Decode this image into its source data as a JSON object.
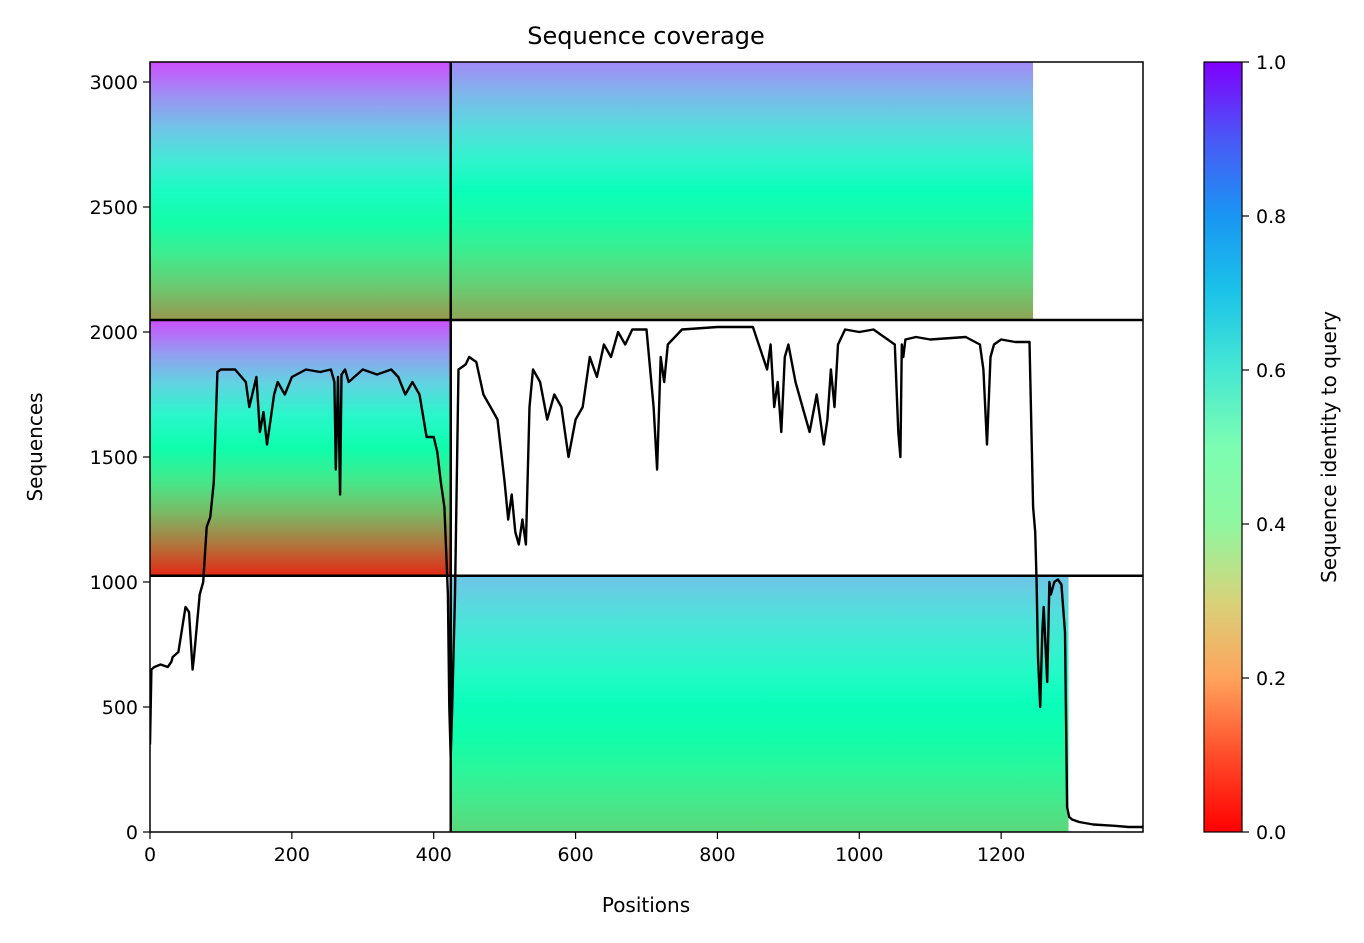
{
  "chart_data": {
    "type": "heatmap",
    "title": "Sequence coverage",
    "xlabel": "Positions",
    "ylabel": "Sequences",
    "xlim": [
      0,
      1400
    ],
    "ylim": [
      0,
      3080
    ],
    "xticks": [
      0,
      200,
      400,
      600,
      800,
      1000,
      1200
    ],
    "yticks": [
      0,
      500,
      1000,
      1500,
      2000,
      2500,
      3000
    ],
    "colorbar": {
      "label": "Sequence identity to query",
      "range": [
        0,
        1
      ],
      "ticks": [
        "0.0",
        "0.2",
        "0.4",
        "0.6",
        "0.8",
        "1.0"
      ],
      "colormap": "rainbow_r"
    },
    "divider_lines": {
      "vertical_x": [
        424
      ],
      "horizontal_y": [
        1025,
        2048
      ]
    },
    "blocks": [
      {
        "name": "top-left",
        "x0": 0,
        "x1": 424,
        "y0": 2048,
        "y1": 3080,
        "identity_low": 0.2,
        "identity_high": 0.9
      },
      {
        "name": "top-right",
        "x0": 424,
        "x1": 1245,
        "y0": 2048,
        "y1": 3080,
        "identity_low": 0.22,
        "identity_high": 0.82
      },
      {
        "name": "middle-left",
        "x0": 0,
        "x1": 424,
        "y0": 1025,
        "y1": 2048,
        "identity_low": 0.05,
        "identity_high": 0.9
      },
      {
        "name": "bottom-right",
        "x0": 424,
        "x1": 1295,
        "y0": 0,
        "y1": 1025,
        "identity_low": 0.32,
        "identity_high": 0.72
      }
    ],
    "coverage_line": {
      "x": [
        0,
        2,
        6,
        15,
        25,
        30,
        32,
        40,
        50,
        55,
        60,
        62,
        70,
        75,
        80,
        85,
        90,
        95,
        100,
        120,
        135,
        140,
        150,
        155,
        160,
        165,
        170,
        175,
        180,
        190,
        200,
        220,
        240,
        255,
        260,
        262,
        265,
        268,
        270,
        275,
        280,
        300,
        320,
        340,
        350,
        360,
        370,
        380,
        390,
        400,
        405,
        410,
        415,
        420,
        422,
        424,
        426,
        430,
        435,
        440,
        445,
        450,
        460,
        470,
        480,
        490,
        500,
        505,
        510,
        515,
        520,
        525,
        530,
        535,
        540,
        550,
        560,
        570,
        580,
        590,
        600,
        610,
        620,
        630,
        640,
        650,
        660,
        670,
        680,
        700,
        710,
        715,
        720,
        725,
        730,
        750,
        800,
        850,
        870,
        875,
        880,
        885,
        890,
        895,
        900,
        910,
        920,
        930,
        940,
        950,
        955,
        960,
        965,
        970,
        980,
        1000,
        1020,
        1050,
        1055,
        1058,
        1060,
        1062,
        1065,
        1080,
        1100,
        1150,
        1170,
        1175,
        1180,
        1185,
        1190,
        1200,
        1220,
        1240,
        1245,
        1248,
        1250,
        1252,
        1255,
        1258,
        1260,
        1265,
        1268,
        1270,
        1275,
        1280,
        1285,
        1290,
        1293,
        1296,
        1300,
        1310,
        1330,
        1360,
        1380,
        1400
      ],
      "y": [
        350,
        650,
        660,
        670,
        660,
        680,
        700,
        720,
        900,
        880,
        650,
        700,
        950,
        1000,
        1220,
        1260,
        1400,
        1840,
        1850,
        1850,
        1800,
        1700,
        1820,
        1600,
        1680,
        1550,
        1650,
        1750,
        1800,
        1750,
        1820,
        1850,
        1840,
        1850,
        1800,
        1450,
        1820,
        1350,
        1830,
        1850,
        1800,
        1850,
        1830,
        1850,
        1820,
        1750,
        1800,
        1750,
        1580,
        1580,
        1520,
        1400,
        1300,
        950,
        500,
        300,
        500,
        950,
        1850,
        1860,
        1870,
        1900,
        1880,
        1750,
        1700,
        1650,
        1400,
        1250,
        1350,
        1200,
        1150,
        1250,
        1150,
        1700,
        1850,
        1800,
        1650,
        1750,
        1700,
        1500,
        1650,
        1700,
        1900,
        1820,
        1950,
        1900,
        2000,
        1950,
        2010,
        2010,
        1700,
        1450,
        1900,
        1800,
        1950,
        2010,
        2020,
        2020,
        1850,
        1950,
        1700,
        1800,
        1600,
        1900,
        1950,
        1800,
        1700,
        1600,
        1750,
        1550,
        1650,
        1850,
        1700,
        1950,
        2010,
        2000,
        2010,
        1950,
        1600,
        1500,
        1950,
        1900,
        1970,
        1980,
        1970,
        1980,
        1950,
        1850,
        1550,
        1900,
        1950,
        1970,
        1960,
        1960,
        1300,
        1200,
        1000,
        700,
        500,
        800,
        900,
        600,
        1000,
        950,
        1000,
        1010,
        990,
        800,
        100,
        60,
        50,
        40,
        30,
        25,
        20,
        20
      ]
    }
  }
}
